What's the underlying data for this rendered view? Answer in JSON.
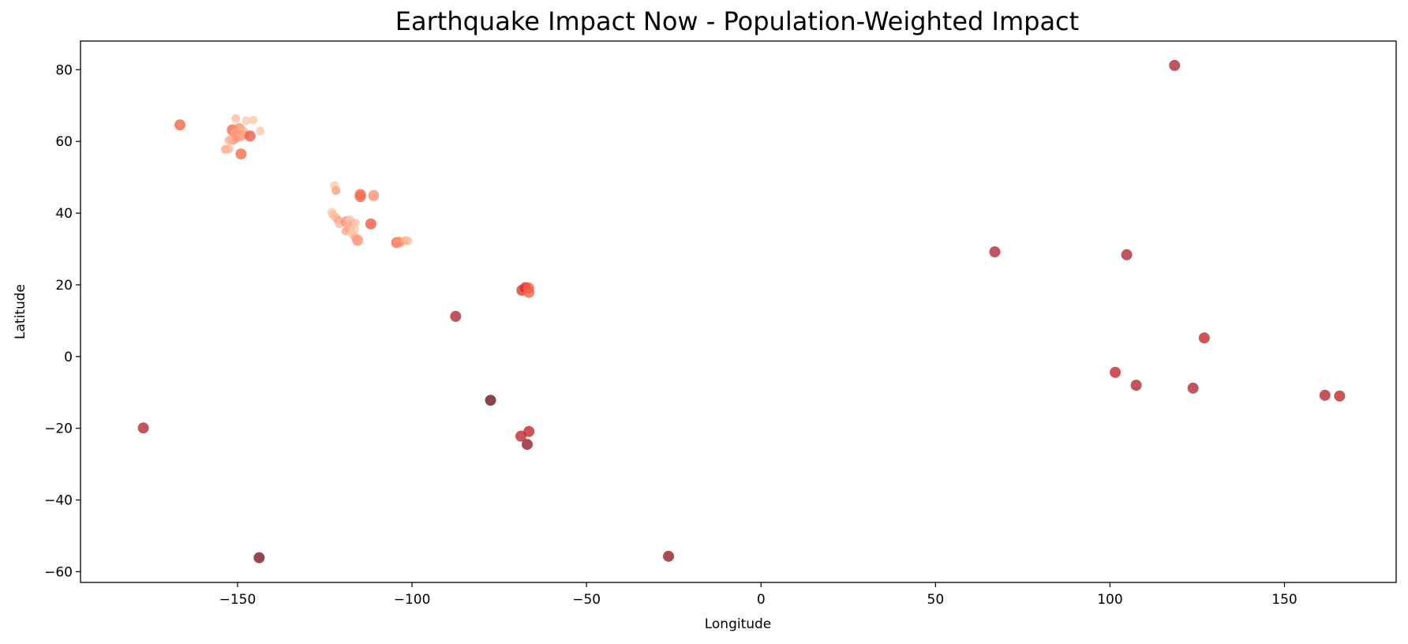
{
  "chart_data": {
    "type": "scatter",
    "title": "Earthquake Impact Now - Population-Weighted Impact",
    "xlabel": "Longitude",
    "ylabel": "Latitude",
    "xlim": [
      -195,
      182
    ],
    "ylim": [
      -63,
      88
    ],
    "xticks": [
      -150,
      -100,
      -50,
      0,
      50,
      100,
      150
    ],
    "yticks": [
      -60,
      -40,
      -20,
      0,
      20,
      40,
      60,
      80
    ],
    "xtick_labels": [
      "−150",
      "−100",
      "−50",
      "0",
      "50",
      "100",
      "150"
    ],
    "ytick_labels": [
      "−60",
      "−40",
      "−20",
      "0",
      "20",
      "40",
      "60",
      "80"
    ],
    "grid": false,
    "legend": "none",
    "color_scale": "light peach (low impact) to dark red (high impact)",
    "points": [
      {
        "x": 118.5,
        "y": 81.2,
        "color": "#b22b36"
      },
      {
        "x": -166.5,
        "y": 64.6,
        "color": "#ef6548"
      },
      {
        "x": -150.5,
        "y": 66.4,
        "color": "#fdbb9d"
      },
      {
        "x": -147.5,
        "y": 65.8,
        "color": "#fdc9ad"
      },
      {
        "x": -145.5,
        "y": 65.9,
        "color": "#fdc9ad"
      },
      {
        "x": -151.5,
        "y": 63.2,
        "color": "#f26c4f"
      },
      {
        "x": -149.5,
        "y": 63.6,
        "color": "#fc9272"
      },
      {
        "x": -148.2,
        "y": 62.9,
        "color": "#fdb49a"
      },
      {
        "x": -150.8,
        "y": 62.4,
        "color": "#fc9f85"
      },
      {
        "x": -149.2,
        "y": 61.6,
        "color": "#fc9272"
      },
      {
        "x": -150.2,
        "y": 61.0,
        "color": "#fca68a"
      },
      {
        "x": -151.3,
        "y": 60.6,
        "color": "#fc9272"
      },
      {
        "x": -152.5,
        "y": 60.3,
        "color": "#fdb49a"
      },
      {
        "x": -147.8,
        "y": 61.9,
        "color": "#fca68a"
      },
      {
        "x": -146.4,
        "y": 61.5,
        "color": "#ef5a43"
      },
      {
        "x": -143.5,
        "y": 62.9,
        "color": "#fdc9ad"
      },
      {
        "x": -149.0,
        "y": 56.5,
        "color": "#f26c4f"
      },
      {
        "x": -153.5,
        "y": 57.8,
        "color": "#fca68a"
      },
      {
        "x": -152.5,
        "y": 57.9,
        "color": "#fdb49a"
      },
      {
        "x": -122.2,
        "y": 47.7,
        "color": "#fdc9ad"
      },
      {
        "x": -121.8,
        "y": 46.3,
        "color": "#fc9f85"
      },
      {
        "x": -114.8,
        "y": 45.2,
        "color": "#f26c4f"
      },
      {
        "x": -114.8,
        "y": 44.6,
        "color": "#f26c4f"
      },
      {
        "x": -111.0,
        "y": 44.9,
        "color": "#fc9272"
      },
      {
        "x": -123.0,
        "y": 40.3,
        "color": "#fdc9ad"
      },
      {
        "x": -122.6,
        "y": 39.5,
        "color": "#fdbb9d"
      },
      {
        "x": -121.8,
        "y": 38.8,
        "color": "#fdbb9d"
      },
      {
        "x": -121.2,
        "y": 38.0,
        "color": "#fca68a"
      },
      {
        "x": -120.8,
        "y": 37.0,
        "color": "#fdbb9d"
      },
      {
        "x": -118.8,
        "y": 37.6,
        "color": "#fc9272"
      },
      {
        "x": -117.8,
        "y": 38.2,
        "color": "#fdc9ad"
      },
      {
        "x": -116.8,
        "y": 36.9,
        "color": "#fc9f85"
      },
      {
        "x": -116.2,
        "y": 37.3,
        "color": "#fdc9ad"
      },
      {
        "x": -118.2,
        "y": 35.6,
        "color": "#fdb49a"
      },
      {
        "x": -119.0,
        "y": 35.0,
        "color": "#fca68a"
      },
      {
        "x": -117.4,
        "y": 34.6,
        "color": "#fdbb9d"
      },
      {
        "x": -116.8,
        "y": 33.9,
        "color": "#fdc9ad"
      },
      {
        "x": -116.3,
        "y": 33.3,
        "color": "#fdb49a"
      },
      {
        "x": -115.6,
        "y": 32.4,
        "color": "#fc9272"
      },
      {
        "x": -116.4,
        "y": 35.3,
        "color": "#fdc9ad"
      },
      {
        "x": -111.8,
        "y": 37.0,
        "color": "#ef5a43"
      },
      {
        "x": -104.4,
        "y": 31.8,
        "color": "#f26c4f"
      },
      {
        "x": -103.8,
        "y": 31.9,
        "color": "#fc9272"
      },
      {
        "x": -102.0,
        "y": 32.3,
        "color": "#fca68a"
      },
      {
        "x": -101.2,
        "y": 32.2,
        "color": "#fdbb9d"
      },
      {
        "x": -68.5,
        "y": 18.5,
        "color": "#e3352b"
      },
      {
        "x": -67.5,
        "y": 19.2,
        "color": "#d92a2a"
      },
      {
        "x": -66.6,
        "y": 19.1,
        "color": "#ef5a43"
      },
      {
        "x": -66.5,
        "y": 17.9,
        "color": "#ef6548"
      },
      {
        "x": -87.5,
        "y": 11.2,
        "color": "#b22b36"
      },
      {
        "x": 67.0,
        "y": 29.2,
        "color": "#b22b36"
      },
      {
        "x": 104.8,
        "y": 28.4,
        "color": "#b22b36"
      },
      {
        "x": 127.0,
        "y": 5.2,
        "color": "#c0282c"
      },
      {
        "x": 101.5,
        "y": -4.4,
        "color": "#c0282c"
      },
      {
        "x": 107.5,
        "y": -8.0,
        "color": "#b22b36"
      },
      {
        "x": 123.8,
        "y": -8.8,
        "color": "#b22b36"
      },
      {
        "x": 161.6,
        "y": -10.8,
        "color": "#b22b36"
      },
      {
        "x": 165.8,
        "y": -11.0,
        "color": "#c0282c"
      },
      {
        "x": -177.0,
        "y": -19.9,
        "color": "#b22b36"
      },
      {
        "x": -77.5,
        "y": -12.2,
        "color": "#6a1520"
      },
      {
        "x": -66.5,
        "y": -20.9,
        "color": "#c0282c"
      },
      {
        "x": -68.8,
        "y": -22.2,
        "color": "#c0282c"
      },
      {
        "x": -67.0,
        "y": -24.5,
        "color": "#941e2b"
      },
      {
        "x": -143.8,
        "y": -56.1,
        "color": "#7a1a25"
      },
      {
        "x": -26.5,
        "y": -55.7,
        "color": "#941e2b"
      }
    ]
  }
}
